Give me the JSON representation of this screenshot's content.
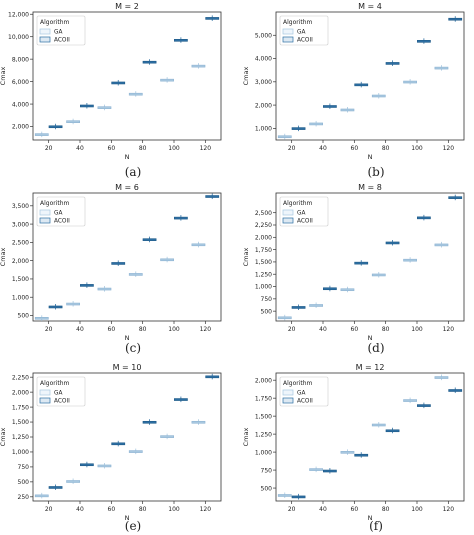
{
  "colors": {
    "ga": "#a8c8e0",
    "acoii": "#2d6fa3",
    "axis": "#333333"
  },
  "chart_data": [
    {
      "type": "box",
      "caption": "(a)",
      "title": "M = 2",
      "xlabel": "N",
      "ylabel": "Cmax",
      "categories": [
        "20",
        "40",
        "60",
        "80",
        "100",
        "120"
      ],
      "ylim": [
        800,
        12200
      ],
      "yticks": [
        2000,
        4000,
        6000,
        8000,
        10000,
        12000
      ],
      "ytick_labels": [
        "2,000",
        "4,000",
        "6,000",
        "8,000",
        "10,000",
        "12,000"
      ],
      "legend": {
        "title": "Algorithm",
        "entries": [
          "GA",
          "ACOII"
        ],
        "position": "top-left"
      },
      "series": [
        {
          "name": "GA",
          "values": [
            1300,
            2450,
            3700,
            4900,
            6150,
            7400
          ]
        },
        {
          "name": "ACOII",
          "values": [
            2000,
            3850,
            5900,
            7750,
            9700,
            11650
          ]
        }
      ]
    },
    {
      "type": "box",
      "caption": "(b)",
      "title": "M = 4",
      "xlabel": "N",
      "ylabel": "Cmax",
      "categories": [
        "20",
        "40",
        "60",
        "80",
        "100",
        "120"
      ],
      "ylim": [
        500,
        6000
      ],
      "yticks": [
        1000,
        2000,
        3000,
        4000,
        5000
      ],
      "ytick_labels": [
        "1,000",
        "2,000",
        "3,000",
        "4,000",
        "5,000"
      ],
      "legend": {
        "title": "Algorithm",
        "entries": [
          "GA",
          "ACOII"
        ],
        "position": "top-left"
      },
      "series": [
        {
          "name": "GA",
          "values": [
            650,
            1200,
            1800,
            2400,
            3000,
            3600
          ]
        },
        {
          "name": "ACOII",
          "values": [
            1000,
            1950,
            2880,
            3800,
            4750,
            5700
          ]
        }
      ]
    },
    {
      "type": "box",
      "caption": "(c)",
      "title": "M = 6",
      "xlabel": "N",
      "ylabel": "Cmax",
      "categories": [
        "20",
        "40",
        "60",
        "80",
        "100",
        "120"
      ],
      "ylim": [
        350,
        3850
      ],
      "yticks": [
        500,
        1000,
        1500,
        2000,
        2500,
        3000,
        3500
      ],
      "ytick_labels": [
        "500",
        "1,000",
        "1,500",
        "2,000",
        "2,500",
        "3,000",
        "3,500"
      ],
      "legend": {
        "title": "Algorithm",
        "entries": [
          "GA",
          "ACOII"
        ],
        "position": "top-left"
      },
      "series": [
        {
          "name": "GA",
          "values": [
            430,
            820,
            1230,
            1630,
            2030,
            2440
          ]
        },
        {
          "name": "ACOII",
          "values": [
            740,
            1330,
            1930,
            2580,
            3170,
            3760
          ]
        }
      ]
    },
    {
      "type": "box",
      "caption": "(d)",
      "title": "M = 8",
      "xlabel": "N",
      "ylabel": "Cmax",
      "categories": [
        "20",
        "40",
        "60",
        "80",
        "100",
        "120"
      ],
      "ylim": [
        300,
        2900
      ],
      "yticks": [
        500,
        750,
        1000,
        1250,
        1500,
        1750,
        2000,
        2250,
        2500
      ],
      "ytick_labels": [
        "500",
        "750",
        "1,000",
        "1,250",
        "1,500",
        "1,750",
        "2,000",
        "2,250",
        "2,500"
      ],
      "legend": {
        "title": "Algorithm",
        "entries": [
          "GA",
          "ACOII"
        ],
        "position": "top-left"
      },
      "series": [
        {
          "name": "GA",
          "values": [
            370,
            620,
            940,
            1240,
            1540,
            1850
          ]
        },
        {
          "name": "ACOII",
          "values": [
            580,
            960,
            1480,
            1890,
            2400,
            2810
          ]
        }
      ]
    },
    {
      "type": "box",
      "caption": "(e)",
      "title": "M = 10",
      "xlabel": "N",
      "ylabel": "Cmax",
      "categories": [
        "20",
        "40",
        "60",
        "80",
        "100",
        "120"
      ],
      "ylim": [
        180,
        2320
      ],
      "yticks": [
        250,
        500,
        750,
        1000,
        1250,
        1500,
        1750,
        2000,
        2250
      ],
      "ytick_labels": [
        "250",
        "500",
        "750",
        "1,000",
        "1,250",
        "1,500",
        "1,750",
        "2,000",
        "2,250"
      ],
      "legend": {
        "title": "Algorithm",
        "entries": [
          "GA",
          "ACOII"
        ],
        "position": "top-left"
      },
      "series": [
        {
          "name": "GA",
          "values": [
            270,
            510,
            770,
            1010,
            1260,
            1500
          ]
        },
        {
          "name": "ACOII",
          "values": [
            410,
            790,
            1140,
            1500,
            1880,
            2260
          ]
        }
      ]
    },
    {
      "type": "box",
      "caption": "(f)",
      "title": "M = 12",
      "xlabel": "N",
      "ylabel": "Cmax",
      "categories": [
        "20",
        "40",
        "60",
        "80",
        "100",
        "120"
      ],
      "ylim": [
        320,
        2100
      ],
      "yticks": [
        500,
        750,
        1000,
        1250,
        1500,
        1750,
        2000
      ],
      "ytick_labels": [
        "500",
        "750",
        "1,000",
        "1,250",
        "1,500",
        "1,750",
        "2,000"
      ],
      "legend": {
        "title": "Algorithm",
        "entries": [
          "GA",
          "ACOII"
        ],
        "position": "top-left"
      },
      "series": [
        {
          "name": "GA",
          "values": [
            400,
            760,
            1000,
            1380,
            1720,
            2040
          ]
        },
        {
          "name": "ACOII",
          "values": [
            380,
            740,
            960,
            1300,
            1650,
            1860
          ]
        }
      ]
    }
  ]
}
